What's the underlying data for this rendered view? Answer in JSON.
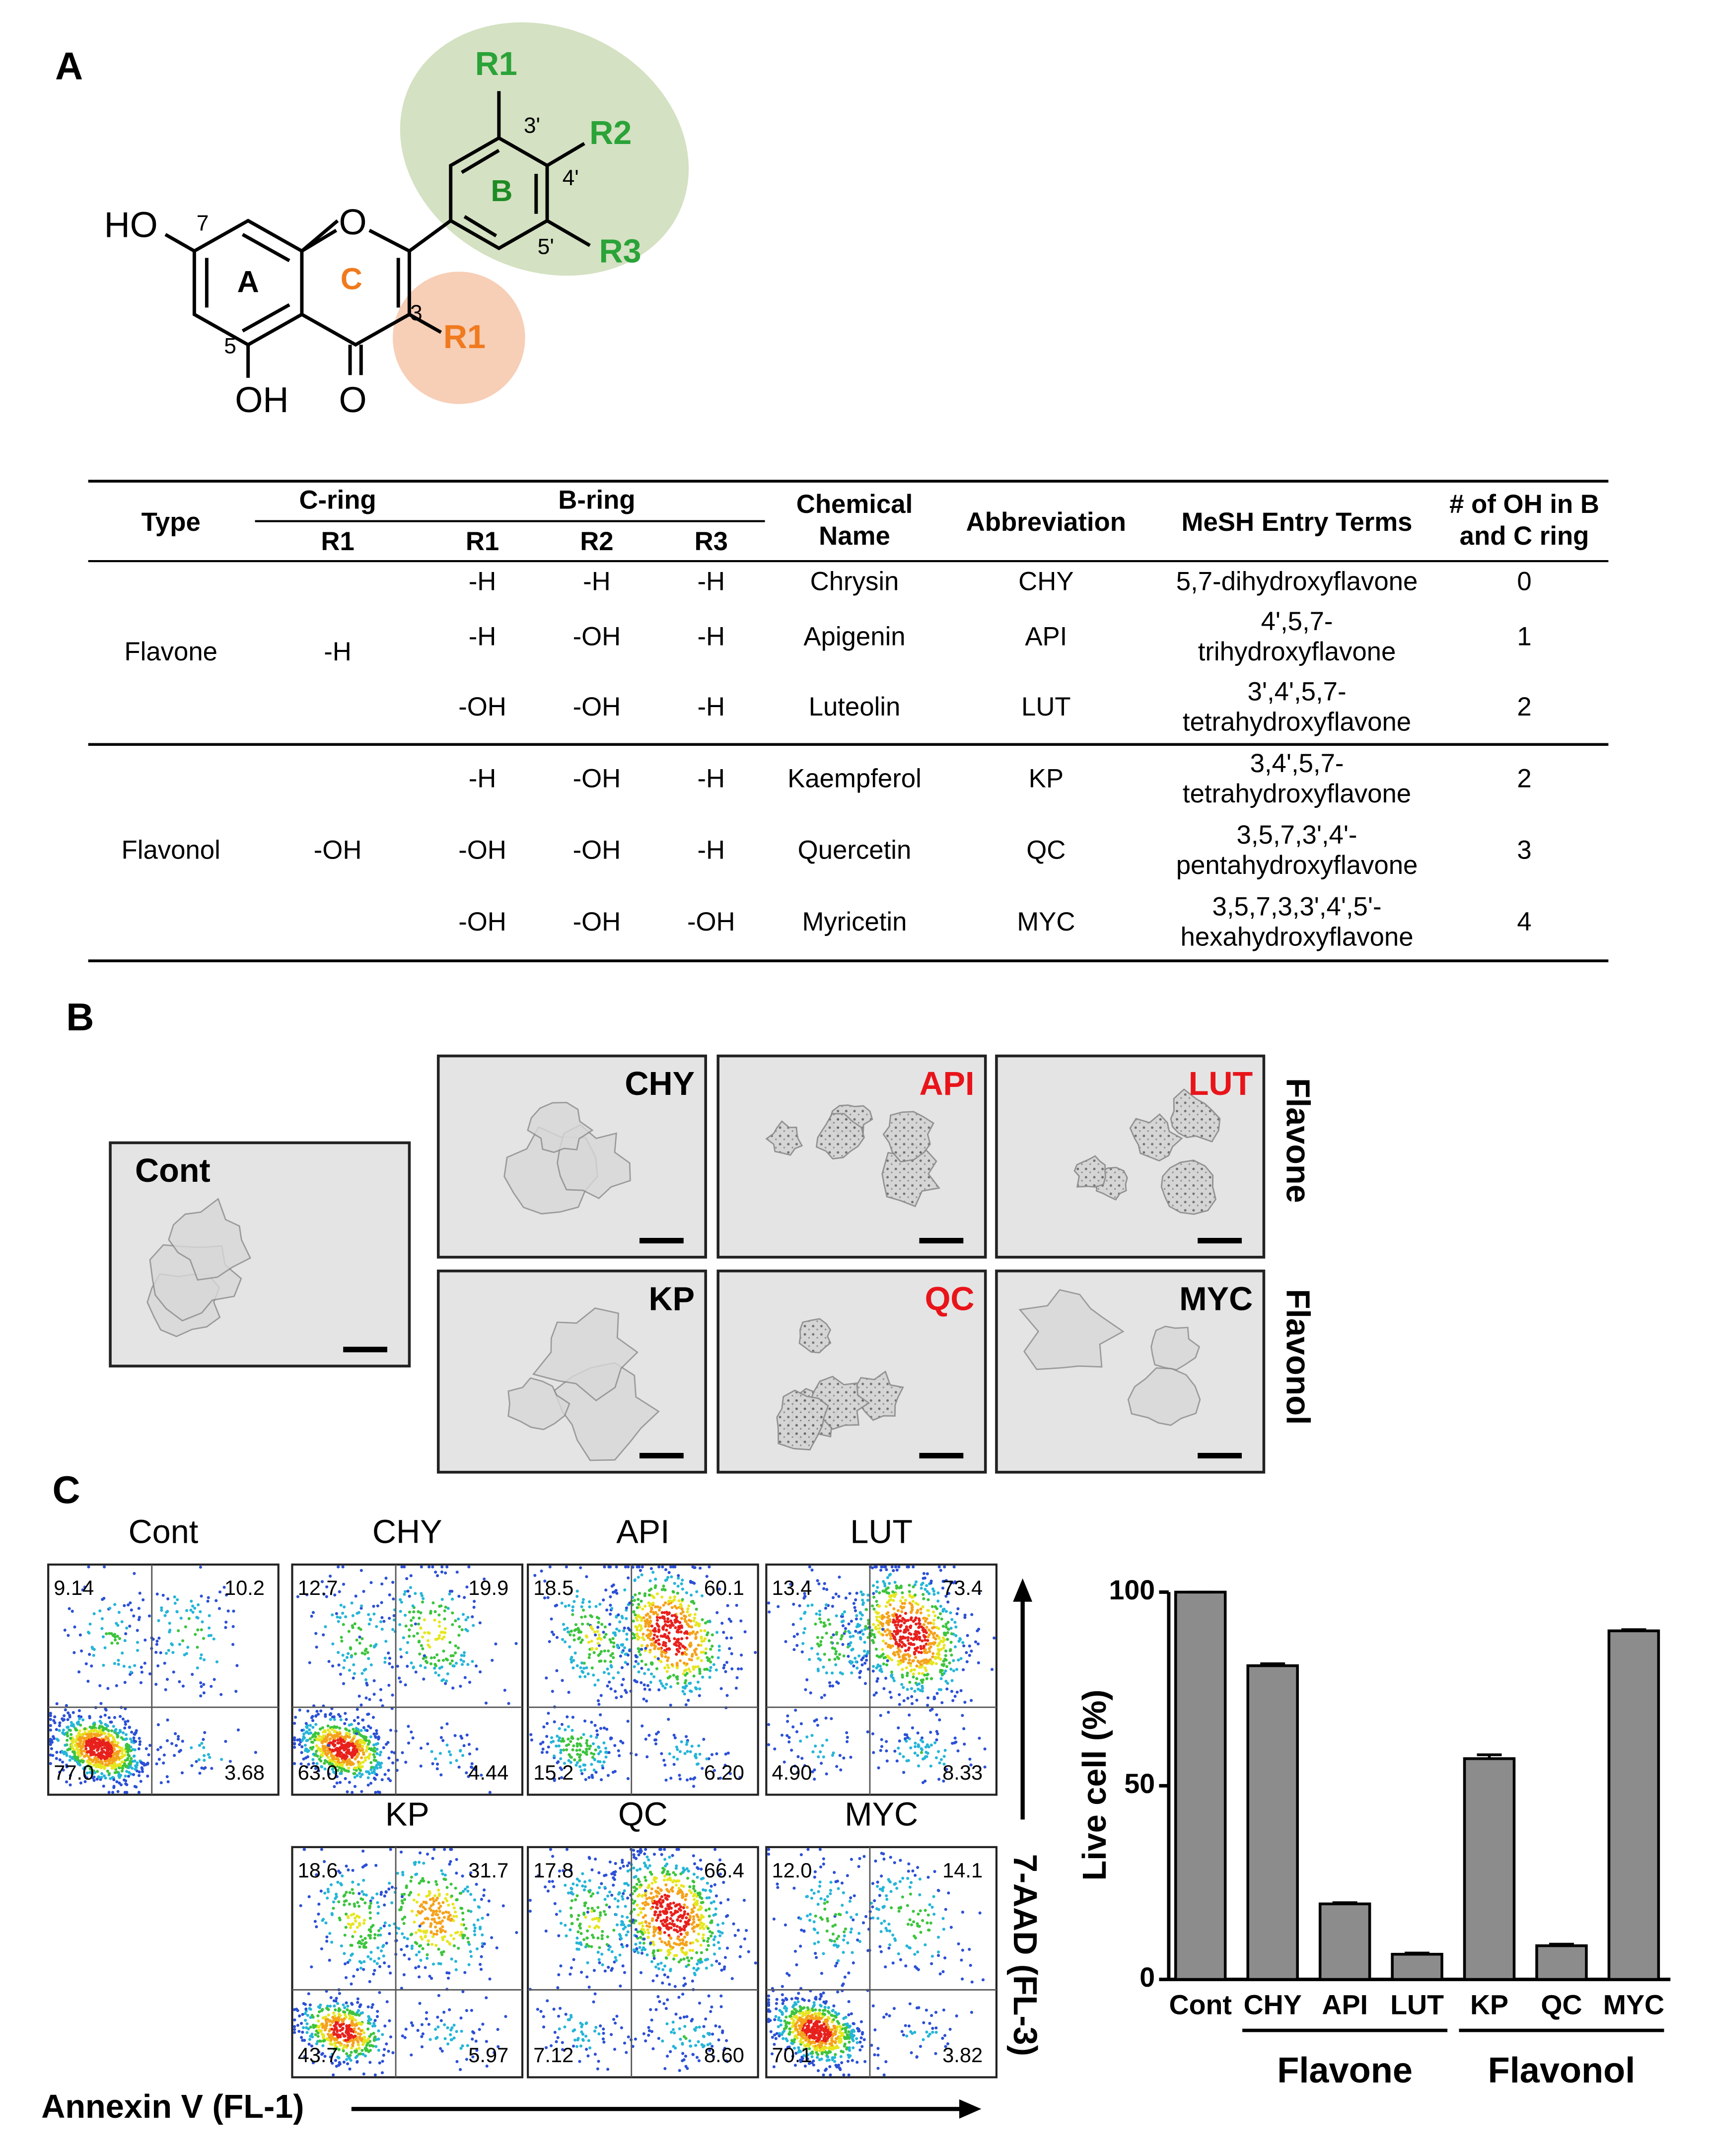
{
  "panel_labels": [
    "A",
    "B",
    "C"
  ],
  "structure": {
    "ho": "HO",
    "oh": "OH",
    "o_ring": "O",
    "o_keto": "O",
    "ring_a": "A",
    "ring_b": "B",
    "ring_c": "C",
    "pos7": "7",
    "pos5": "5",
    "pos3": "3",
    "pos3p": "3'",
    "pos4p": "4'",
    "pos5p": "5'",
    "b_r1": "R1",
    "b_r2": "R2",
    "b_r3": "R3",
    "c_r1": "R1"
  },
  "table": {
    "header": {
      "type": "Type",
      "c_ring": "C-ring",
      "b_ring": "B-ring",
      "sub": [
        "R1",
        "R1",
        "R2",
        "R3"
      ],
      "chemical_name": [
        "Chemical",
        "Name"
      ],
      "abbreviation": "Abbreviation",
      "mesh": "MeSH Entry Terms",
      "oh_count": [
        "# of OH in B",
        "and C ring"
      ]
    },
    "groups": [
      {
        "type": "Flavone",
        "c_r1": "-H",
        "rows": [
          {
            "b_r1": "-H",
            "b_r2": "-H",
            "b_r3": "-H",
            "name": "Chrysin",
            "abbr": "CHY",
            "mesh": [
              "5,7-dihydroxyflavone"
            ],
            "oh": "0"
          },
          {
            "b_r1": "-H",
            "b_r2": "-OH",
            "b_r3": "-H",
            "name": "Apigenin",
            "abbr": "API",
            "mesh": [
              "4',5,7-",
              "trihydroxyflavone"
            ],
            "oh": "1"
          },
          {
            "b_r1": "-OH",
            "b_r2": "-OH",
            "b_r3": "-H",
            "name": "Luteolin",
            "abbr": "LUT",
            "mesh": [
              "3',4',5,7-",
              "tetrahydroxyflavone"
            ],
            "oh": "2"
          }
        ]
      },
      {
        "type": "Flavonol",
        "c_r1": "-OH",
        "rows": [
          {
            "b_r1": "-H",
            "b_r2": "-OH",
            "b_r3": "-H",
            "name": "Kaempferol",
            "abbr": "KP",
            "mesh": [
              "3,4',5,7-",
              "tetrahydroxyflavone"
            ],
            "oh": "2"
          },
          {
            "b_r1": "-OH",
            "b_r2": "-OH",
            "b_r3": "-H",
            "name": "Quercetin",
            "abbr": "QC",
            "mesh": [
              "3,5,7,3',4'-",
              "pentahydroxyflavone"
            ],
            "oh": "3"
          },
          {
            "b_r1": "-OH",
            "b_r2": "-OH",
            "b_r3": "-OH",
            "name": "Myricetin",
            "abbr": "MYC",
            "mesh": [
              "3,5,7,3,3',4',5'-",
              "hexahydroxyflavone"
            ],
            "oh": "4"
          }
        ]
      }
    ]
  },
  "micrographs": {
    "control": "Cont",
    "images": [
      {
        "label": "CHY",
        "color": "#000000"
      },
      {
        "label": "API",
        "color": "#e8141a"
      },
      {
        "label": "LUT",
        "color": "#e8141a"
      },
      {
        "label": "KP",
        "color": "#000000"
      },
      {
        "label": "QC",
        "color": "#e8141a"
      },
      {
        "label": "MYC",
        "color": "#000000"
      }
    ],
    "row_labels": [
      "Flavone",
      "Flavonol"
    ]
  },
  "flow": {
    "x_axis": "Annexin V (FL-1)",
    "y_axis": "7-AAD (FL-3)",
    "plots": [
      {
        "name": "Cont",
        "ul": "9.14",
        "ur": "10.2",
        "ll": "77.0",
        "lr": "3.68"
      },
      {
        "name": "CHY",
        "ul": "12.7",
        "ur": "19.9",
        "ll": "63.0",
        "lr": "4.44"
      },
      {
        "name": "API",
        "ul": "18.5",
        "ur": "60.1",
        "ll": "15.2",
        "lr": "6.20"
      },
      {
        "name": "LUT",
        "ul": "13.4",
        "ur": "73.4",
        "ll": "4.90",
        "lr": "8.33"
      },
      {
        "name": "KP",
        "ul": "18.6",
        "ur": "31.7",
        "ll": "43.7",
        "lr": "5.97"
      },
      {
        "name": "QC",
        "ul": "17.8",
        "ur": "66.4",
        "ll": "7.12",
        "lr": "8.60"
      },
      {
        "name": "MYC",
        "ul": "12.0",
        "ur": "14.1",
        "ll": "70.1",
        "lr": "3.82"
      }
    ]
  },
  "chart_data": {
    "type": "bar",
    "ylabel": "Live cell (%)",
    "categories": [
      "Cont",
      "CHY",
      "API",
      "LUT",
      "KP",
      "QC",
      "MYC"
    ],
    "values": [
      100,
      81,
      19.5,
      6.5,
      57,
      8.7,
      90
    ],
    "errors": [
      0,
      0.5,
      0.3,
      0.3,
      1,
      0.4,
      0.3
    ],
    "color": "#8c8c8c",
    "ylim": [
      0,
      100
    ],
    "yticks": [
      0,
      50,
      100
    ],
    "groups": [
      {
        "label": "Flavone",
        "members": [
          "CHY",
          "API",
          "LUT"
        ]
      },
      {
        "label": "Flavonol",
        "members": [
          "KP",
          "QC",
          "MYC"
        ]
      }
    ]
  }
}
